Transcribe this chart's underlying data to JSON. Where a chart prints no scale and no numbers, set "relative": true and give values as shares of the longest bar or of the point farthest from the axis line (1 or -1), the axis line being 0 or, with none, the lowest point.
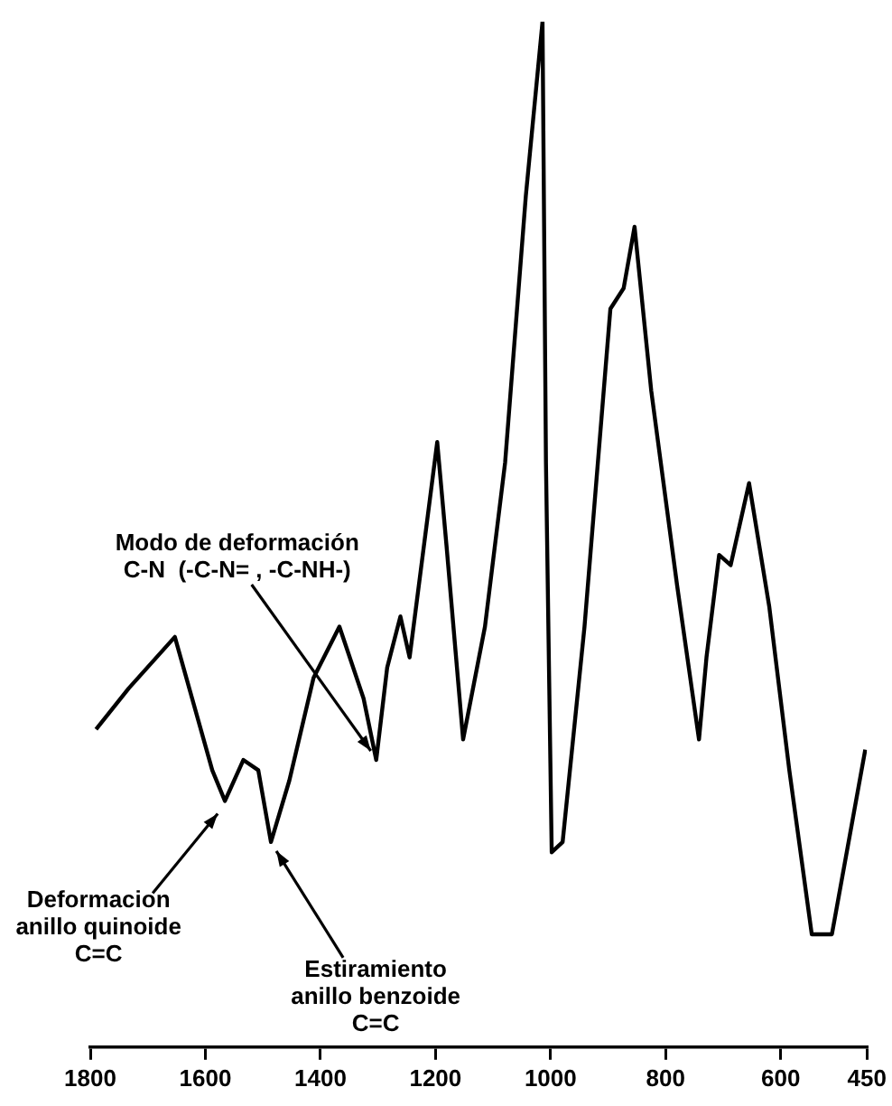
{
  "chart_data": {
    "type": "line",
    "relative": true,
    "color": "#000000",
    "marker": "none",
    "line_style": "solid",
    "grid": false,
    "legend": false,
    "tick_labels": "x",
    "x": [
      1790,
      1733,
      1653,
      1588,
      1566,
      1534,
      1508,
      1486,
      1454,
      1412,
      1367,
      1325,
      1303,
      1284,
      1261,
      1245,
      1197,
      1181,
      1152,
      1114,
      1079,
      1043,
      1014,
      1008,
      998,
      979,
      941,
      896,
      873,
      854,
      825,
      780,
      742,
      729,
      707,
      687,
      655,
      620,
      585,
      546,
      511,
      453
    ],
    "values": [
      0.31,
      0.35,
      0.4,
      0.27,
      0.24,
      0.28,
      0.27,
      0.2,
      0.26,
      0.36,
      0.41,
      0.34,
      0.28,
      0.37,
      0.42,
      0.38,
      0.59,
      0.49,
      0.3,
      0.41,
      0.57,
      0.83,
      1,
      0.57,
      0.19,
      0.2,
      0.41,
      0.72,
      0.74,
      0.8,
      0.64,
      0.45,
      0.3,
      0.38,
      0.48,
      0.47,
      0.55,
      0.43,
      0.27,
      0.11,
      0.11,
      0.29
    ],
    "xlim": [
      1800,
      450
    ],
    "xticks": [
      1800,
      1600,
      1400,
      1200,
      1000,
      800,
      600,
      450
    ],
    "annotations": [
      {
        "text": "Modo de deformación\nC-N  (-C-N= , -C-NH-)",
        "x": 1303,
        "y": 0.28
      },
      {
        "text": "Deformacion\nanillo quinoide\nC=C",
        "x": 1566,
        "y": 0.24
      },
      {
        "text": "Estiramiento\nanillo benzoide\nC=C",
        "x": 1486,
        "y": 0.2
      }
    ]
  }
}
